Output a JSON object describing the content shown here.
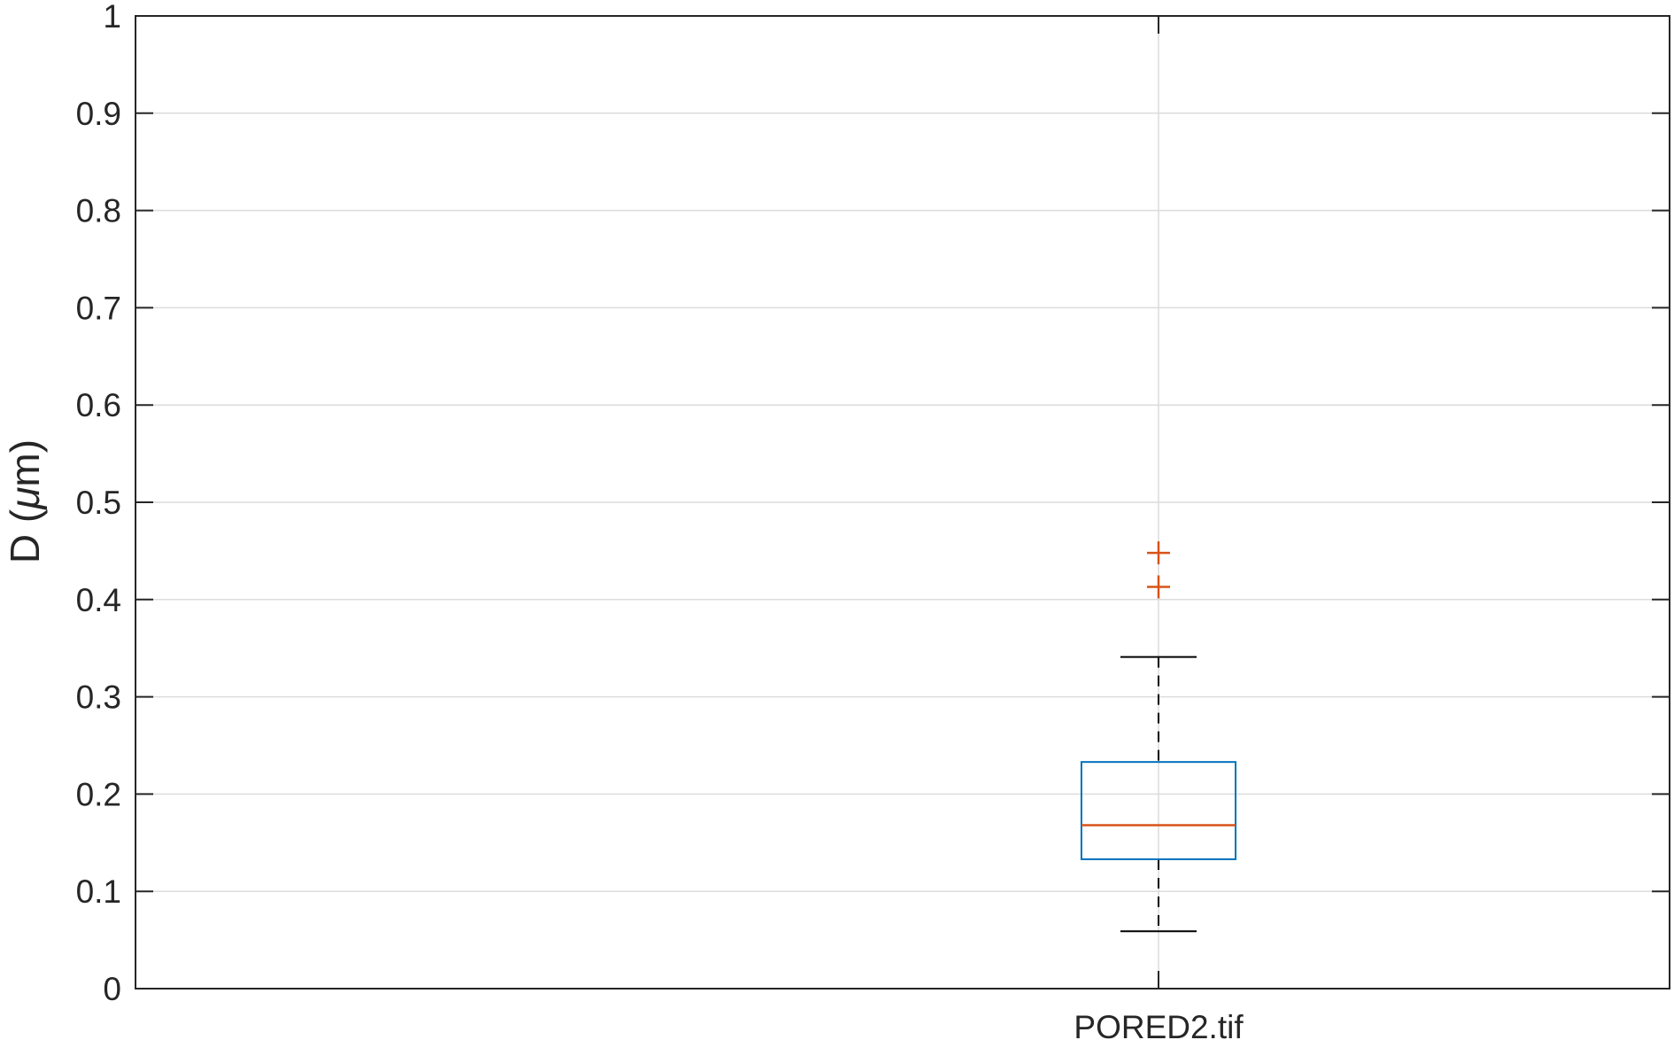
{
  "chart_data": {
    "type": "box",
    "categories": [
      "PORED2.tif"
    ],
    "ylabel_prefix": "D  (",
    "ylabel_unit_mu": "μ",
    "ylabel_suffix": "m)",
    "xlabel": "",
    "title": "",
    "ylim": [
      0,
      1
    ],
    "yticks": [
      0,
      0.1,
      0.2,
      0.3,
      0.4,
      0.5,
      0.6,
      0.7,
      0.8,
      0.9,
      1
    ],
    "ytick_labels": [
      "0",
      "0.1",
      "0.2",
      "0.3",
      "0.4",
      "0.5",
      "0.6",
      "0.7",
      "0.8",
      "0.9",
      "1"
    ],
    "grid": true,
    "boxes": [
      {
        "category": "PORED2.tif",
        "q1": 0.133,
        "median": 0.168,
        "q3": 0.233,
        "whisker_low": 0.059,
        "whisker_high": 0.341,
        "outliers": [
          0.413,
          0.448
        ]
      }
    ],
    "colors": {
      "box": "#0072BD",
      "median": "#D95319",
      "outlier": "#D95319",
      "whisker": "#000000",
      "grid": "#dcdcdc",
      "axis": "#262626"
    }
  }
}
